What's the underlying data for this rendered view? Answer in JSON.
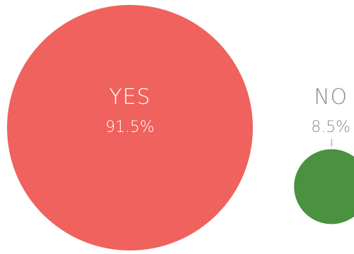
{
  "chart_data": {
    "type": "bubble",
    "series": [
      {
        "label": "YES",
        "value": 91.5,
        "value_text": "91.5%",
        "color": "#F0625D"
      },
      {
        "label": "NO",
        "value": 8.5,
        "value_text": "8.5%",
        "color": "#4A9140"
      }
    ],
    "label_colors": {
      "inside": "#FFFFFF",
      "outside": "#8A8A8A"
    },
    "connector_color": "#8A8A8A"
  }
}
